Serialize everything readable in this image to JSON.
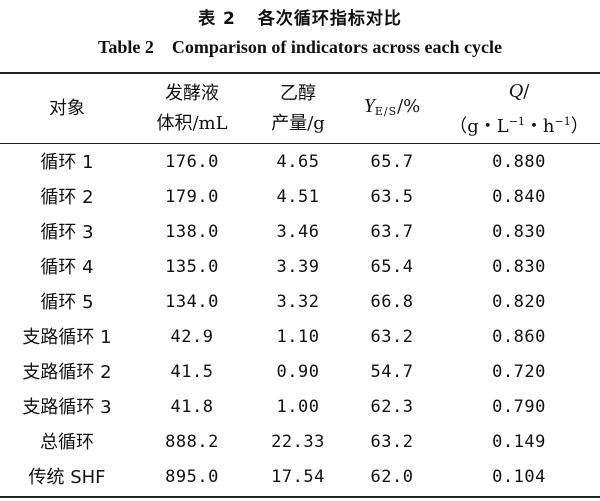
{
  "caption": {
    "cn_number": "表 2",
    "cn_title": "各次循环指标对比",
    "en_number": "Table 2",
    "en_title": "Comparison of indicators across each cycle"
  },
  "headers": {
    "object": "对象",
    "volume_line1": "发酵液",
    "volume_line2": "体积/mL",
    "ethanol_line1": "乙醇",
    "ethanol_line2": "产量/g",
    "yes_symbol": "Y",
    "yes_subscript": "E/S",
    "yes_unit": "/%",
    "q_symbol": "Q",
    "q_slash": "/",
    "q_unit_open": "（g・L",
    "q_unit_exp1": "−1",
    "q_unit_mid": "・h",
    "q_unit_exp2": "−1",
    "q_unit_close": "）"
  },
  "rows": [
    {
      "object": "循环 1",
      "volume": "176.0",
      "ethanol": "4.65",
      "yes": "65.7",
      "q": "0.880"
    },
    {
      "object": "循环 2",
      "volume": "179.0",
      "ethanol": "4.51",
      "yes": "63.5",
      "q": "0.840"
    },
    {
      "object": "循环 3",
      "volume": "138.0",
      "ethanol": "3.46",
      "yes": "63.7",
      "q": "0.830"
    },
    {
      "object": "循环 4",
      "volume": "135.0",
      "ethanol": "3.39",
      "yes": "65.4",
      "q": "0.830"
    },
    {
      "object": "循环 5",
      "volume": "134.0",
      "ethanol": "3.32",
      "yes": "66.8",
      "q": "0.820"
    },
    {
      "object": "支路循环 1",
      "volume": "42.9",
      "ethanol": "1.10",
      "yes": "63.2",
      "q": "0.860"
    },
    {
      "object": "支路循环 2",
      "volume": "41.5",
      "ethanol": "0.90",
      "yes": "54.7",
      "q": "0.720"
    },
    {
      "object": "支路循环 3",
      "volume": "41.8",
      "ethanol": "1.00",
      "yes": "62.3",
      "q": "0.790"
    },
    {
      "object": "总循环",
      "volume": "888.2",
      "ethanol": "22.33",
      "yes": "63.2",
      "q": "0.149"
    },
    {
      "object": "传统 SHF",
      "volume": "895.0",
      "ethanol": "17.54",
      "yes": "62.0",
      "q": "0.104"
    }
  ]
}
